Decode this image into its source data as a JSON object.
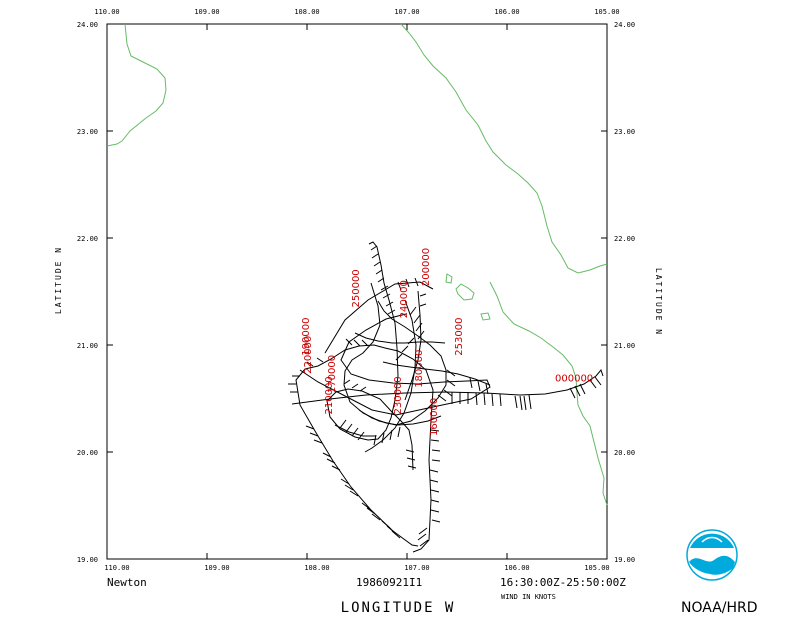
{
  "map": {
    "lon_ticks": [
      "110.00",
      "109.00",
      "108.00",
      "107.00",
      "106.00",
      "105.00"
    ],
    "lat_ticks": [
      "24.00",
      "23.00",
      "22.00",
      "21.00",
      "20.00",
      "19.00"
    ],
    "lon_range": [
      110,
      105
    ],
    "lat_range": [
      19,
      24
    ],
    "ylabel_left": "LATITUDE N",
    "ylabel_right": "LATITUDE N",
    "xlabel": "LONGITUDE W",
    "coastline_color": "#66bb66",
    "track_color": "#000000",
    "time_label_color": "#cc0000"
  },
  "footer": {
    "storm_name": "Newton",
    "flight_id": "19860921I1",
    "time_range": "16:30:00Z-25:50:00Z",
    "wind_units": "WIND IN KNOTS",
    "agency": "NOAA/HRD",
    "agency_color": "#00aadd"
  },
  "time_labels": [
    {
      "text": "250000",
      "lon": 107.48,
      "lat": 21.35
    },
    {
      "text": "200000",
      "lon": 106.78,
      "lat": 21.55
    },
    {
      "text": "190000",
      "lon": 107.98,
      "lat": 20.9
    },
    {
      "text": "220000",
      "lon": 107.96,
      "lat": 20.73
    },
    {
      "text": "240000",
      "lon": 107.0,
      "lat": 21.25
    },
    {
      "text": "253000",
      "lon": 106.45,
      "lat": 20.9
    },
    {
      "text": "000000",
      "lon": 105.52,
      "lat": 20.66
    },
    {
      "text": "170000",
      "lon": 107.72,
      "lat": 20.55
    },
    {
      "text": "180000",
      "lon": 106.85,
      "lat": 20.6
    },
    {
      "text": "210000",
      "lon": 107.75,
      "lat": 20.35
    },
    {
      "text": "230000",
      "lon": 107.06,
      "lat": 20.35
    },
    {
      "text": "160000",
      "lon": 106.7,
      "lat": 20.15
    }
  ]
}
